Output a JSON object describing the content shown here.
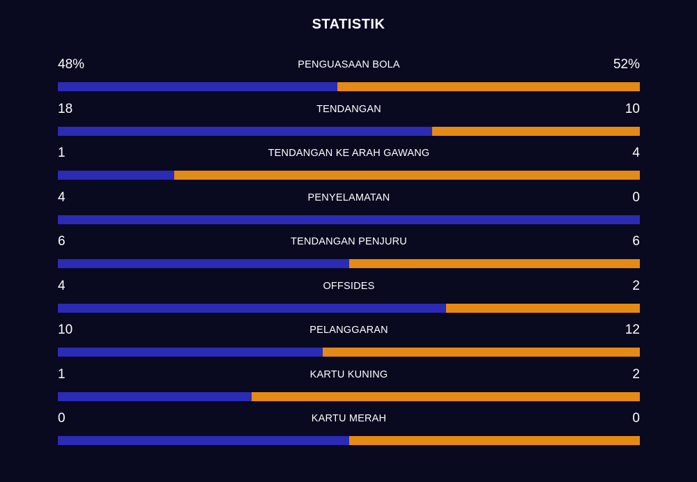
{
  "title": "STATISTIK",
  "colors": {
    "background": "#090920",
    "home": "#2b2bb5",
    "away": "#e58a14",
    "text": "#ffffff"
  },
  "stats": [
    {
      "label": "PENGUASAAN BOLA",
      "left": "48%",
      "right": "52%",
      "home_share": 0.48
    },
    {
      "label": "TENDANGAN",
      "left": "18",
      "right": "10",
      "home_share": 0.643
    },
    {
      "label": "TENDANGAN KE ARAH GAWANG",
      "left": "1",
      "right": "4",
      "home_share": 0.2
    },
    {
      "label": "PENYELAMATAN",
      "left": "4",
      "right": "0",
      "home_share": 1.0
    },
    {
      "label": "TENDANGAN PENJURU",
      "left": "6",
      "right": "6",
      "home_share": 0.5
    },
    {
      "label": "OFFSIDES",
      "left": "4",
      "right": "2",
      "home_share": 0.667
    },
    {
      "label": "PELANGGARAN",
      "left": "10",
      "right": "12",
      "home_share": 0.455
    },
    {
      "label": "KARTU KUNING",
      "left": "1",
      "right": "2",
      "home_share": 0.333
    },
    {
      "label": "KARTU MERAH",
      "left": "0",
      "right": "0",
      "home_share": 0.5
    }
  ]
}
